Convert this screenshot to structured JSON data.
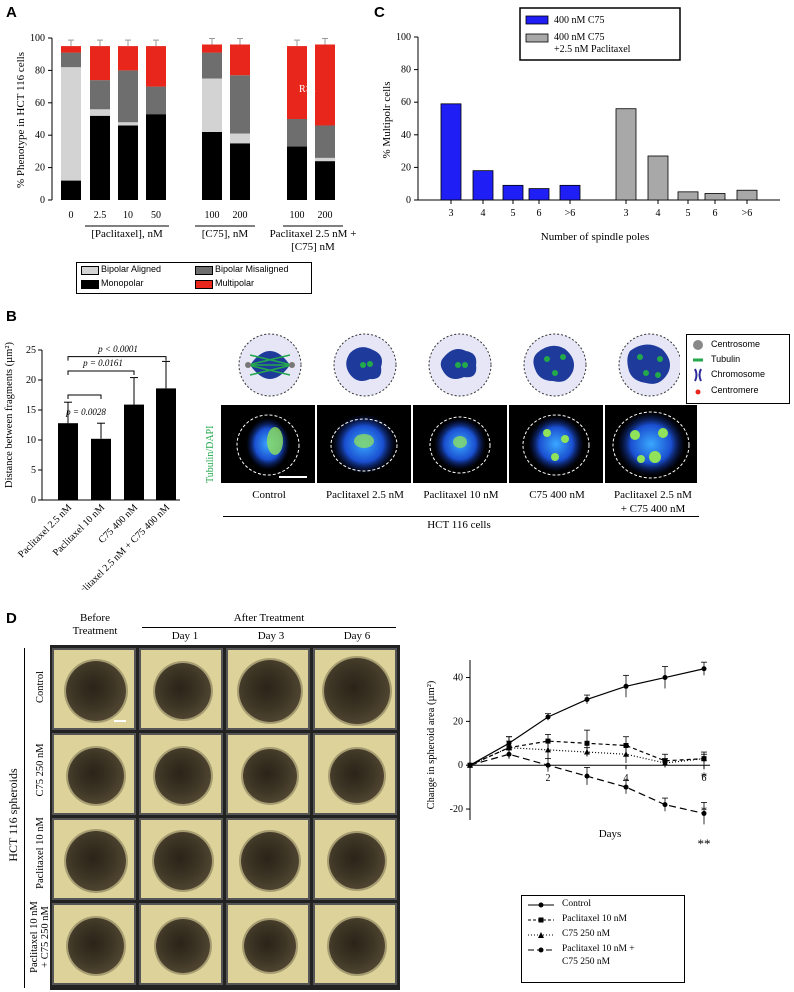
{
  "panelA": {
    "label": "A",
    "ylabel": "% Phenotype in HCT 116 cells",
    "yticks": [
      "0",
      "20",
      "40",
      "60",
      "80",
      "100"
    ],
    "group_labels": [
      "[Paclitaxel], nM",
      "[C75], nM",
      "Paclitaxel 2.5 nM +",
      "[C75] nM"
    ],
    "legend": [
      "Bipolar Aligned",
      "Bipolar Misaligned",
      "Monopolar",
      "Multipolar"
    ],
    "annotation": "R>1",
    "colors": {
      "bipolar_aligned": "#d3d3d3",
      "bipolar_misaligned": "#6e6e6e",
      "monopolar": "#000000",
      "multipolar": "#e8261c"
    }
  },
  "panelB": {
    "label": "B",
    "ylabel": "Distance between fragments (µm²)",
    "yticks": [
      "0",
      "5",
      "10",
      "15",
      "20",
      "25"
    ],
    "pvals": [
      "p = 0.0028",
      "p = 0.0161",
      "p < 0.0001"
    ],
    "cell_labels": [
      "Control",
      "Paclitaxel 2.5 nM",
      "Paclitaxel 10 nM",
      "C75 400 nM",
      "Paclitaxel 2.5 nM",
      "+ C75 400 nM"
    ],
    "cells_caption": "HCT 116 cells",
    "stain_label": "Tubulin/DAPI",
    "legend": [
      "Centrosome",
      "Tubulin",
      "Chromosome",
      "Centromere"
    ]
  },
  "panelC": {
    "label": "C",
    "ylabel": "% Multipolr cells",
    "xlabel": "Number of spindle poles",
    "yticks": [
      "0",
      "20",
      "40",
      "60",
      "80",
      "100"
    ],
    "legend": [
      "400 nM C75",
      "400 nM C75",
      "+2.5 nM Paclitaxel"
    ]
  },
  "panelD": {
    "label": "D",
    "col_headers": [
      "Before",
      "Treatment",
      "After Treatment",
      "Day 1",
      "Day 3",
      "Day 6"
    ],
    "row_labels": [
      "Control",
      "C75 250 nM",
      "Paclitaxel 10 nM",
      "Paclitaxel 10 nM",
      "+ C75 250 nM"
    ],
    "side_label": "HCT 116 spheroids",
    "ylabel": "Change in spheroid area (µm²)",
    "xlabel": "Days",
    "yticks": [
      "-20",
      "0",
      "20",
      "40"
    ],
    "xticks": [
      "2",
      "4",
      "6"
    ],
    "stars": [
      "*",
      "*",
      "**"
    ],
    "legend": [
      "Control",
      "Paclitaxel 10 nM",
      "C75 250 nM",
      "Paclitaxel 10 nM +",
      "C75 250 nM"
    ]
  },
  "chart_data": [
    {
      "type": "bar",
      "title": "",
      "ylabel": "% Phenotype in HCT 116 cells",
      "ylim": [
        0,
        100
      ],
      "categories": [
        "0",
        "2.5",
        "10",
        "50",
        "100",
        "200",
        "100",
        "200"
      ],
      "series": [
        {
          "name": "Monopolar",
          "values": [
            12,
            52,
            46,
            53,
            42,
            35,
            33,
            24
          ]
        },
        {
          "name": "Bipolar Aligned",
          "values": [
            70,
            4,
            2,
            0,
            33,
            6,
            0,
            2
          ]
        },
        {
          "name": "Bipolar Misaligned",
          "values": [
            9,
            18,
            32,
            17,
            16,
            36,
            17,
            20
          ]
        },
        {
          "name": "Multipolar",
          "values": [
            4,
            21,
            15,
            25,
            5,
            19,
            45,
            50
          ]
        }
      ]
    },
    {
      "type": "bar",
      "ylabel": "Distance between fragments (µm²)",
      "ylim": [
        0,
        25
      ],
      "categories": [
        "Paclitaxel 2.5 nM",
        "Paclitaxel 10 nM",
        "C75 400 nM",
        "Paclitaxel 2.5 nM + C75 400 nM"
      ],
      "values": [
        12.8,
        10.2,
        15.9,
        18.6
      ],
      "errors": [
        3.5,
        2.6,
        4.5,
        4.5
      ]
    },
    {
      "type": "bar",
      "ylabel": "% Multipolr cells",
      "xlabel": "Number of spindle poles",
      "ylim": [
        0,
        100
      ],
      "series": [
        {
          "name": "400 nM C75",
          "categories": [
            "3",
            "4",
            "5",
            "6",
            ">6"
          ],
          "values": [
            59,
            18,
            9,
            7,
            9
          ]
        },
        {
          "name": "400 nM C75 +2.5 nM Paclitaxel",
          "categories": [
            "3",
            "4",
            "5",
            "6",
            ">6"
          ],
          "values": [
            56,
            27,
            5,
            4,
            6
          ]
        }
      ]
    },
    {
      "type": "line",
      "ylabel": "Change in spheroid area (µm²)",
      "xlabel": "Days",
      "ylim": [
        -25,
        48
      ],
      "x": [
        0,
        1,
        2,
        3,
        4,
        5,
        6
      ],
      "series": [
        {
          "name": "Control",
          "values": [
            0,
            10,
            22,
            30,
            36,
            40,
            44
          ]
        },
        {
          "name": "Paclitaxel 10 nM",
          "values": [
            0,
            8,
            11,
            10,
            9,
            2,
            3
          ]
        },
        {
          "name": "C75 250 nM",
          "values": [
            0,
            8,
            7,
            6,
            5,
            1,
            3
          ]
        },
        {
          "name": "Paclitaxel 10 nM + C75 250 nM",
          "values": [
            0,
            5,
            0,
            -5,
            -10,
            -18,
            -22
          ]
        }
      ]
    }
  ]
}
